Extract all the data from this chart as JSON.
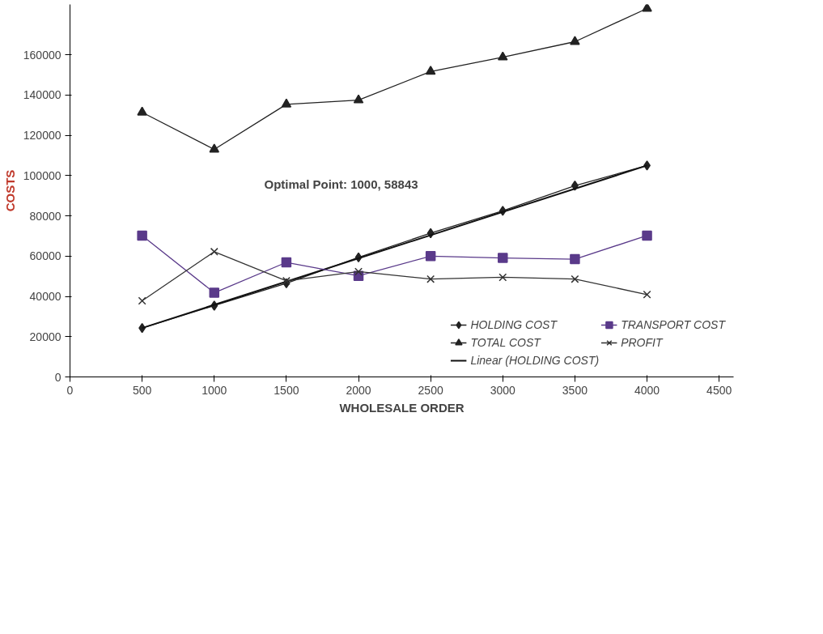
{
  "chart_data": {
    "type": "line",
    "xlabel": "WHOLESALE ORDER",
    "ylabel": "COSTS",
    "annotations": [
      "Optimal Point: 1000, 58843"
    ],
    "x": [
      500,
      1000,
      1500,
      2000,
      2500,
      3000,
      3500,
      4000
    ],
    "xlim": [
      0,
      4600
    ],
    "xticks": [
      0,
      500,
      1000,
      1500,
      2000,
      2500,
      3000,
      3500,
      4000,
      4500
    ],
    "ylim": [
      0,
      185000
    ],
    "yticks": [
      0,
      20000,
      40000,
      60000,
      80000,
      100000,
      120000,
      140000,
      160000
    ],
    "grid": false,
    "legend": "bottom right",
    "series": [
      {
        "name": "HOLDING COST",
        "color": "#222222",
        "marker": "diamond",
        "values": [
          24300,
          35400,
          46500,
          59400,
          71400,
          82500,
          95000,
          105000
        ]
      },
      {
        "name": "TOTAL COST",
        "color": "#222222",
        "marker": "triangle",
        "values": [
          131400,
          113000,
          135400,
          137500,
          151700,
          158800,
          166500,
          183000
        ]
      },
      {
        "name": "Linear (HOLDING COST)",
        "color": "#111111",
        "marker": "none",
        "x": [
          500,
          4000
        ],
        "values": [
          24300,
          105000
        ]
      },
      {
        "name": "TRANSPORT COST",
        "color": "#5a3a8a",
        "marker": "square",
        "values": [
          70200,
          41800,
          56900,
          50200,
          60000,
          59100,
          58500,
          70200
        ]
      },
      {
        "name": "PROFIT",
        "color": "#333333",
        "marker": "cross",
        "values": [
          37800,
          62200,
          47700,
          52300,
          48600,
          49500,
          48600,
          40900
        ]
      }
    ]
  }
}
